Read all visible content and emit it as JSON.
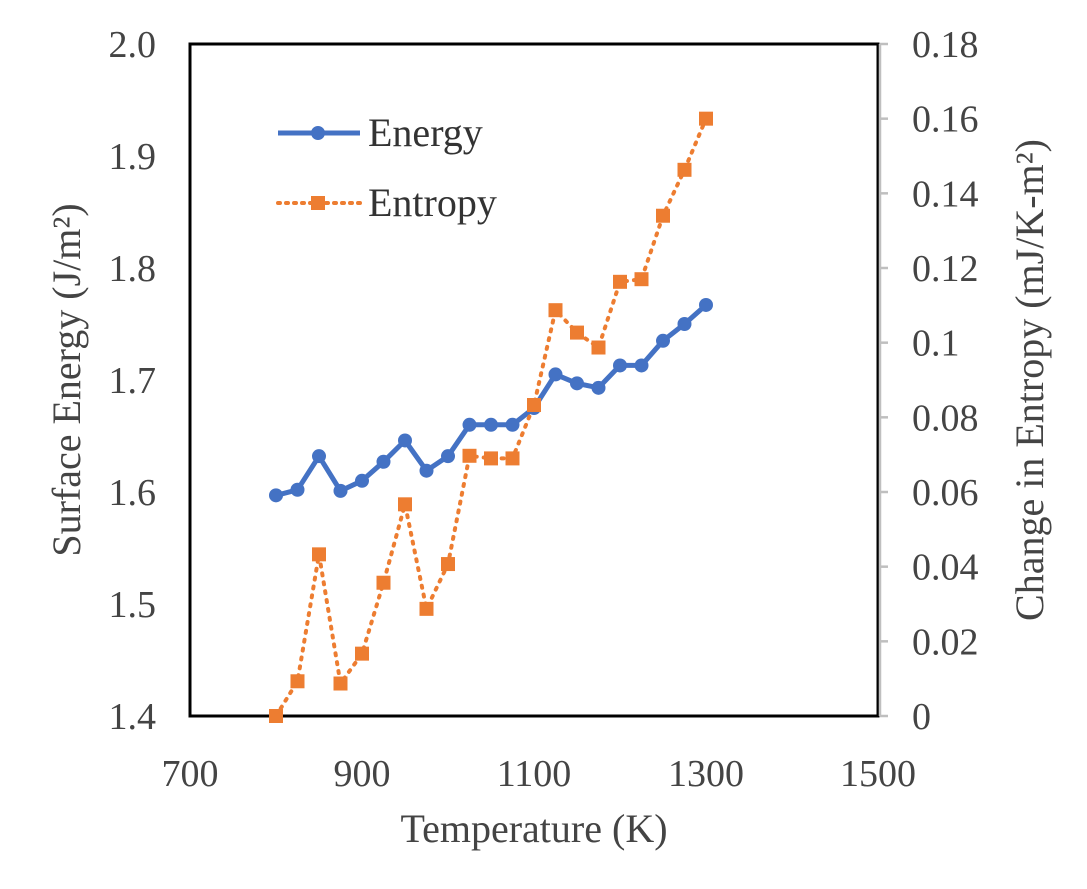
{
  "chart_data": {
    "type": "line",
    "x": [
      800,
      825,
      850,
      875,
      900,
      925,
      950,
      975,
      1000,
      1025,
      1050,
      1075,
      1100,
      1125,
      1150,
      1175,
      1200,
      1225,
      1250,
      1275,
      1300
    ],
    "series": [
      {
        "name": "Energy",
        "axis": "left",
        "color": "#4472C4",
        "marker": "circle",
        "line_style": "solid",
        "values": [
          1.597,
          1.602,
          1.632,
          1.601,
          1.61,
          1.627,
          1.646,
          1.619,
          1.632,
          1.66,
          1.66,
          1.66,
          1.675,
          1.705,
          1.697,
          1.693,
          1.713,
          1.713,
          1.735,
          1.75,
          1.767
        ]
      },
      {
        "name": "Entropy",
        "axis": "right",
        "color": "#ED7D31",
        "marker": "square",
        "line_style": "dotted",
        "values": [
          0.0,
          0.0093,
          0.0433,
          0.0087,
          0.0167,
          0.0357,
          0.0567,
          0.0287,
          0.0407,
          0.0697,
          0.069,
          0.069,
          0.0833,
          0.1087,
          0.1027,
          0.0987,
          0.1163,
          0.117,
          0.134,
          0.1463,
          0.16
        ]
      }
    ],
    "xlabel": "Temperature (K)",
    "ylabel_left": "Surface Energy (J/m²)",
    "ylabel_right": "Change in Entropy (mJ/K-m²)",
    "xlim": [
      700,
      1500
    ],
    "ylim_left": [
      1.4,
      2.0
    ],
    "ylim_right": [
      0,
      0.18
    ],
    "x_ticks": [
      "700",
      "900",
      "1100",
      "1300",
      "1500"
    ],
    "y_left_ticks": [
      "1.4",
      "1.5",
      "1.6",
      "1.7",
      "1.8",
      "1.9",
      "2.0"
    ],
    "y_right_ticks": [
      "0",
      "0.02",
      "0.04",
      "0.06",
      "0.08",
      "0.1",
      "0.12",
      "0.14",
      "0.16",
      "0.18"
    ],
    "grid": false,
    "legend_position": "top-left"
  }
}
